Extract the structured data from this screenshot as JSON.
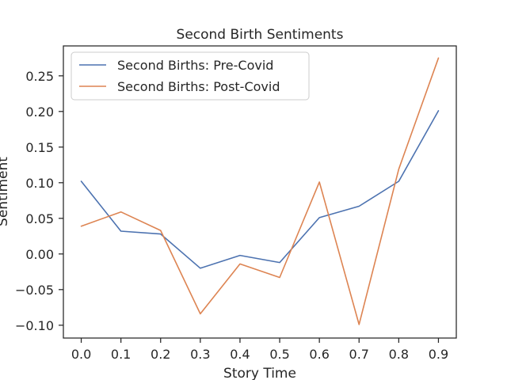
{
  "chart_data": {
    "type": "line",
    "title": "Second Birth Sentiments",
    "xlabel": "Story Time",
    "ylabel": "Sentiment",
    "x": [
      0.0,
      0.1,
      0.2,
      0.3,
      0.4,
      0.5,
      0.6,
      0.7,
      0.8,
      0.9
    ],
    "x_ticks": [
      "0.0",
      "0.1",
      "0.2",
      "0.3",
      "0.4",
      "0.5",
      "0.6",
      "0.7",
      "0.8",
      "0.9"
    ],
    "xlim": [
      -0.045,
      0.945
    ],
    "y_ticks": [
      {
        "value": 0.25,
        "label": "0.25"
      },
      {
        "value": 0.2,
        "label": "0.20"
      },
      {
        "value": 0.15,
        "label": "0.15"
      },
      {
        "value": 0.1,
        "label": "0.10"
      },
      {
        "value": 0.05,
        "label": "0.05"
      },
      {
        "value": 0.0,
        "label": "0.00"
      },
      {
        "value": -0.05,
        "label": "−0.05"
      },
      {
        "value": -0.1,
        "label": "−0.10"
      }
    ],
    "ylim": [
      -0.118,
      0.292
    ],
    "grid": false,
    "legend_position": "top-left",
    "series": [
      {
        "name": "Second Births: Pre-Covid",
        "color": "#4c72b0",
        "values": [
          0.102,
          0.032,
          0.028,
          -0.02,
          -0.002,
          -0.012,
          0.051,
          0.067,
          0.102,
          0.201
        ]
      },
      {
        "name": "Second Births: Post-Covid",
        "color": "#dd8452",
        "values": [
          0.039,
          0.059,
          0.033,
          -0.084,
          -0.014,
          -0.033,
          0.101,
          -0.099,
          0.119,
          0.275
        ]
      }
    ]
  }
}
